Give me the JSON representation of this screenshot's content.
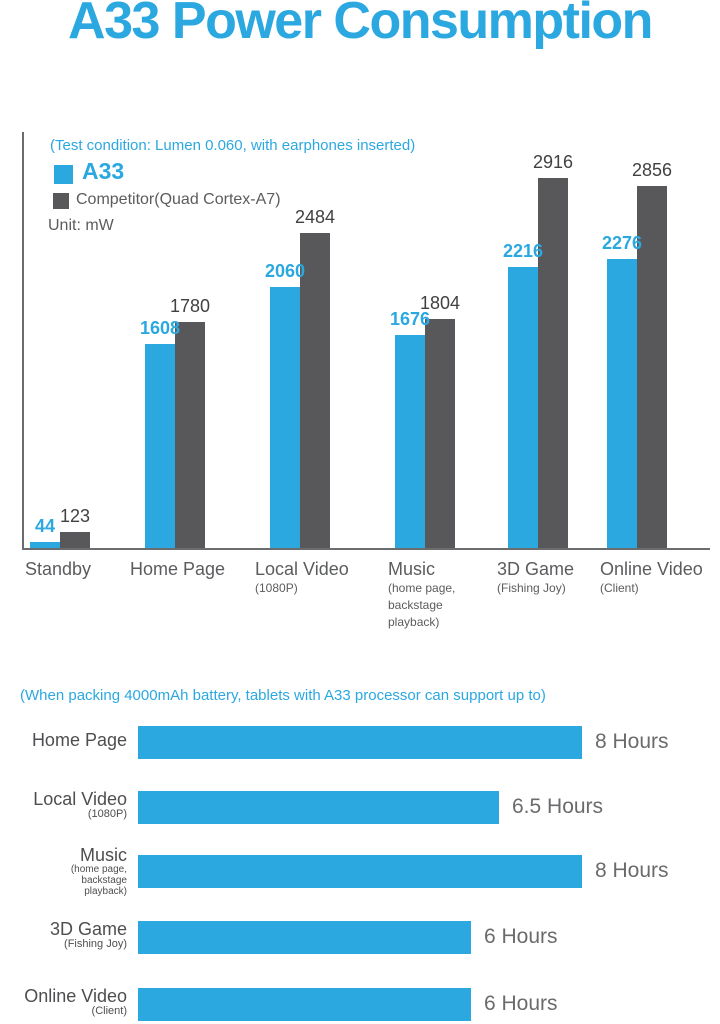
{
  "title": "A33 Power Consumption",
  "colors": {
    "accent_blue": "#2BA8E0",
    "competitor_gray": "#58585A",
    "value_text": "#414042",
    "label_gray": "#5B5C5E",
    "axis_gray": "#6B6C6E"
  },
  "chart_data": [
    {
      "type": "bar",
      "orientation": "vertical",
      "note": "(Test condition: Lumen 0.060, with earphones inserted)",
      "unit_label": "Unit: mW",
      "legend_position": "top-left",
      "legend": [
        {
          "name": "A33",
          "color": "#2BA8E0"
        },
        {
          "name": "Competitor(Quad Cortex-A7)",
          "color": "#58585A"
        }
      ],
      "categories": [
        {
          "label": "Standby",
          "sub": []
        },
        {
          "label": "Home Page",
          "sub": []
        },
        {
          "label": "Local Video",
          "sub": [
            "(1080P)"
          ]
        },
        {
          "label": "Music",
          "sub": [
            "(home page,",
            "backstage",
            "playback)"
          ]
        },
        {
          "label": "3D Game",
          "sub": [
            "(Fishing Joy)"
          ]
        },
        {
          "label": "Online Video",
          "sub": [
            "(Client)"
          ]
        }
      ],
      "series": [
        {
          "name": "A33",
          "color": "#2BA8E0",
          "values": [
            44,
            1608,
            2060,
            1676,
            2216,
            2276
          ]
        },
        {
          "name": "Competitor(Quad Cortex-A7)",
          "color": "#58585A",
          "values": [
            123,
            1780,
            2484,
            1804,
            2916,
            2856
          ]
        }
      ],
      "ylim": [
        0,
        2916
      ],
      "grid": false,
      "axis": "left-and-bottom"
    },
    {
      "type": "bar",
      "orientation": "horizontal",
      "caption": "(When packing 4000mAh battery, tablets with A33 processor can support up to)",
      "bar_color": "#2BA8E0",
      "rows": [
        {
          "label": "Home Page",
          "sub": [],
          "hours": 8,
          "value_label": "8 Hours"
        },
        {
          "label": "Local Video",
          "sub": [
            "(1080P)"
          ],
          "hours": 6.5,
          "value_label": "6.5 Hours"
        },
        {
          "label": "Music",
          "sub": [
            "(home page,",
            "backstage",
            "playback)"
          ],
          "hours": 8,
          "value_label": "8 Hours"
        },
        {
          "label": "3D Game",
          "sub": [
            "(Fishing Joy)"
          ],
          "hours": 6,
          "value_label": "6 Hours"
        },
        {
          "label": "Online Video",
          "sub": [
            "(Client)"
          ],
          "hours": 6,
          "value_label": "6 Hours"
        }
      ],
      "xlim_hours": [
        0,
        8
      ],
      "grid": false
    }
  ]
}
